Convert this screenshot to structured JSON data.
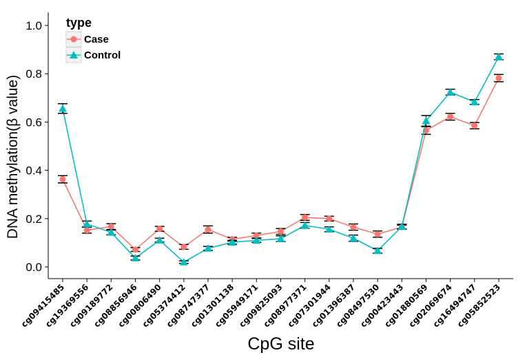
{
  "chart_data": {
    "type": "line",
    "xlabel": "CpG site",
    "ylabel": "DNA methylation(β value)",
    "ylim": [
      -0.05,
      1.05
    ],
    "yticks": [
      0.0,
      0.2,
      0.4,
      0.6,
      0.8,
      1.0
    ],
    "ytick_labels": [
      "0.0",
      "0.2",
      "0.4",
      "0.6",
      "0.8",
      "1.0"
    ],
    "grid": false,
    "legend": {
      "title": "type",
      "position": "top-left"
    },
    "categories": [
      "cg09415485",
      "cg19369556",
      "cg09189772",
      "cg08856946",
      "cg00806490",
      "cg05374412",
      "cg08747377",
      "cg01301138",
      "cg05949171",
      "cg09825093",
      "cg08977371",
      "cg07301944",
      "cg01396387",
      "cg08497530",
      "cg00423443",
      "cg01880569",
      "cg02069674",
      "cg16494747",
      "cg05852523"
    ],
    "series": [
      {
        "name": "Case",
        "color": "#F8766D",
        "marker": "circle",
        "values": [
          0.363,
          0.152,
          0.167,
          0.072,
          0.158,
          0.083,
          0.155,
          0.115,
          0.13,
          0.147,
          0.205,
          0.2,
          0.165,
          0.136,
          0.165,
          0.565,
          0.622,
          0.585,
          0.782
        ],
        "errors": [
          0.015,
          0.012,
          0.012,
          0.008,
          0.01,
          0.01,
          0.015,
          0.008,
          0.01,
          0.012,
          0.012,
          0.01,
          0.013,
          0.013,
          0.008,
          0.016,
          0.014,
          0.013,
          0.015
        ]
      },
      {
        "name": "Control",
        "color": "#00BFC4",
        "marker": "triangle",
        "values": [
          0.656,
          0.178,
          0.143,
          0.037,
          0.111,
          0.02,
          0.077,
          0.102,
          0.11,
          0.117,
          0.172,
          0.156,
          0.119,
          0.067,
          0.167,
          0.605,
          0.724,
          0.683,
          0.87
        ]
      }
    ],
    "control_errors": [
      0.02,
      0.012,
      0.01,
      0.008,
      0.008,
      0.005,
      0.008,
      0.008,
      0.008,
      0.012,
      0.012,
      0.01,
      0.013,
      0.01,
      0.01,
      0.022,
      0.012,
      0.01,
      0.012
    ]
  }
}
